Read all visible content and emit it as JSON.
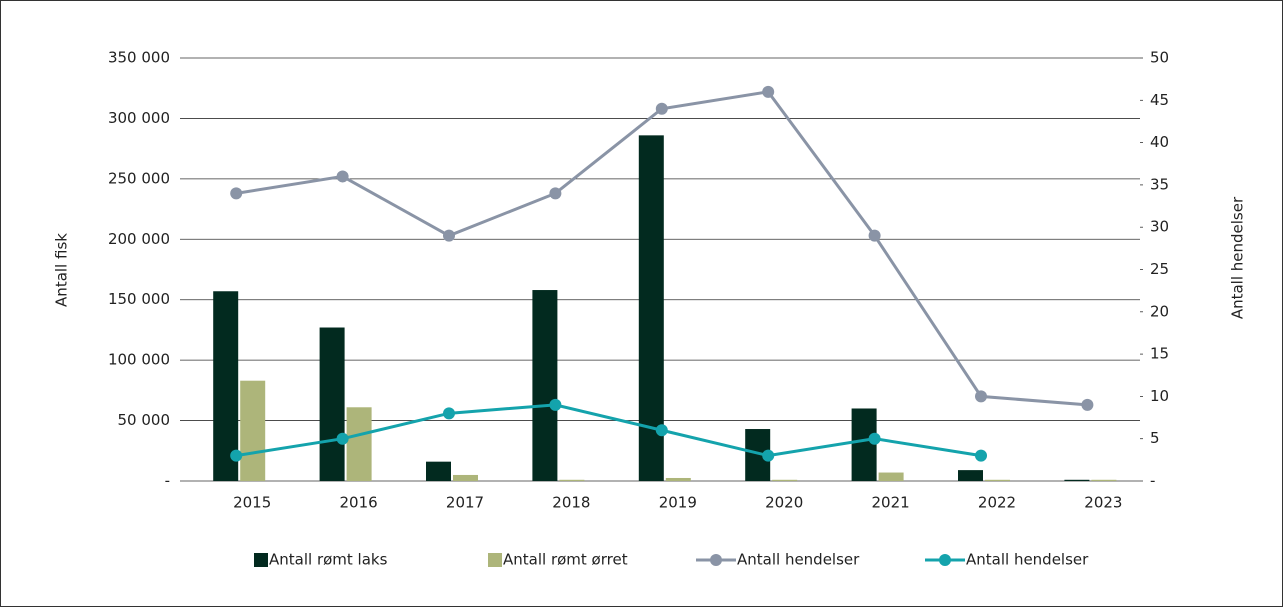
{
  "chart_data": {
    "type": "bar",
    "categories": [
      "2015",
      "2016",
      "2017",
      "2018",
      "2019",
      "2020",
      "2021",
      "2022",
      "2023"
    ],
    "series": [
      {
        "name": "Antall rømt laks",
        "type": "bar",
        "color": "#022a1f",
        "values": [
          157000,
          127000,
          16000,
          158000,
          286000,
          43000,
          60000,
          9000,
          1000
        ]
      },
      {
        "name": "Antall rømt ørret",
        "type": "bar",
        "color": "#adb57a",
        "values": [
          83000,
          61000,
          5000,
          1000,
          2500,
          1000,
          7000,
          1000,
          1000
        ]
      },
      {
        "name": "Antall hendelser",
        "type": "line",
        "axis": "y2",
        "color": "#8a94a6",
        "values": [
          34,
          36,
          29,
          34,
          44,
          46,
          29,
          10,
          9
        ]
      },
      {
        "name": "Antall hendelser",
        "type": "line",
        "axis": "y2",
        "color": "#14a3ac",
        "values": [
          3,
          5,
          8,
          9,
          6,
          3,
          5,
          3,
          null
        ]
      }
    ],
    "y_label": "Antall fisk",
    "y2_label": "Antall hendelser",
    "ylim": [
      0,
      350000
    ],
    "yticks": [
      {
        "value": 0,
        "label": "-"
      },
      {
        "value": 50000,
        "label": "50 000"
      },
      {
        "value": 100000,
        "label": "100 000"
      },
      {
        "value": 150000,
        "label": "150 000"
      },
      {
        "value": 200000,
        "label": "200 000"
      },
      {
        "value": 250000,
        "label": "250 000"
      },
      {
        "value": 300000,
        "label": "300 000"
      },
      {
        "value": 350000,
        "label": "350 000"
      }
    ],
    "y2lim": [
      0,
      50
    ],
    "y2ticks": [
      {
        "value": 0,
        "label": "-"
      },
      5,
      10,
      15,
      20,
      25,
      30,
      35,
      40,
      45,
      50
    ],
    "grid": true,
    "legend": "bottom"
  }
}
